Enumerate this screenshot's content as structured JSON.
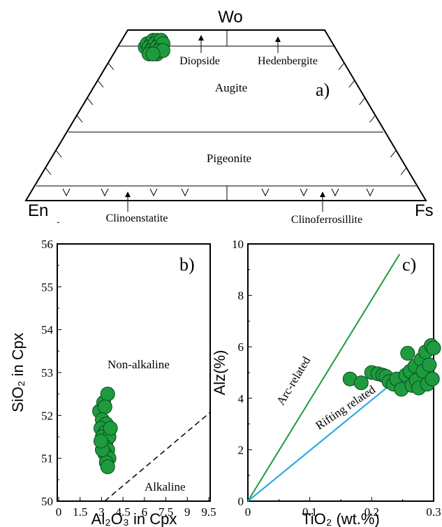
{
  "chart_data": [
    {
      "type": "scatter",
      "panel_label": "a)",
      "vertex_labels": {
        "top": "Wo",
        "left": "En",
        "right": "Fs"
      },
      "fields": {
        "diopside": "Diopside",
        "hedenbergite": "Hedenbergite",
        "augite": "Augite",
        "pigeonite": "Pigeonite",
        "clinoenstatite": "Clinoenstatite",
        "clinoferrosillite": "Clinoferrosillite"
      },
      "points": [
        {
          "en": 48,
          "fs": 7,
          "wo": 45
        },
        {
          "en": 47,
          "fs": 7,
          "wo": 46
        },
        {
          "en": 46,
          "fs": 8,
          "wo": 46
        },
        {
          "en": 45,
          "fs": 8,
          "wo": 47
        },
        {
          "en": 44,
          "fs": 9,
          "wo": 47
        },
        {
          "en": 47,
          "fs": 8,
          "wo": 45
        },
        {
          "en": 46,
          "fs": 9,
          "wo": 45
        },
        {
          "en": 45,
          "fs": 9,
          "wo": 46
        },
        {
          "en": 44,
          "fs": 10,
          "wo": 46
        },
        {
          "en": 43,
          "fs": 10,
          "wo": 47
        },
        {
          "en": 47,
          "fs": 9,
          "wo": 44
        },
        {
          "en": 46,
          "fs": 10,
          "wo": 44
        },
        {
          "en": 45,
          "fs": 10,
          "wo": 45
        },
        {
          "en": 44,
          "fs": 11,
          "wo": 45
        },
        {
          "en": 43,
          "fs": 11,
          "wo": 46
        },
        {
          "en": 48,
          "fs": 9,
          "wo": 43
        },
        {
          "en": 46,
          "fs": 11,
          "wo": 43
        },
        {
          "en": 45,
          "fs": 11,
          "wo": 44
        },
        {
          "en": 44,
          "fs": 12,
          "wo": 44
        },
        {
          "en": 47,
          "fs": 10,
          "wo": 43
        }
      ]
    },
    {
      "type": "scatter",
      "panel_label": "b)",
      "ylabel": "SiO₂ in Cpx",
      "xlabel": "Al₂O₃ in Cpx",
      "xlim": [
        0,
        10
      ],
      "ylim": [
        50,
        56
      ],
      "x_ticks": [
        "0",
        "1.5",
        "3",
        "4.5",
        "6",
        "7.5",
        "9",
        "9.5"
      ],
      "y_ticks": [
        "50",
        "51",
        "52",
        "53",
        "54",
        "55",
        "56"
      ],
      "regions": {
        "upper": "Non-alkaline",
        "lower": "Alkaline"
      },
      "points": [
        {
          "x": 2.1,
          "y": 52.1
        },
        {
          "x": 2.4,
          "y": 52.3
        },
        {
          "x": 2.7,
          "y": 52.5
        },
        {
          "x": 2.5,
          "y": 52.2
        },
        {
          "x": 2.3,
          "y": 51.9
        },
        {
          "x": 2.6,
          "y": 51.8
        },
        {
          "x": 2.2,
          "y": 51.7
        },
        {
          "x": 2.5,
          "y": 51.6
        },
        {
          "x": 2.3,
          "y": 51.5
        },
        {
          "x": 2.6,
          "y": 51.4
        },
        {
          "x": 2.8,
          "y": 51.5
        },
        {
          "x": 2.4,
          "y": 51.3
        },
        {
          "x": 2.7,
          "y": 51.2
        },
        {
          "x": 2.5,
          "y": 51.1
        },
        {
          "x": 2.8,
          "y": 51.0
        },
        {
          "x": 2.6,
          "y": 50.9
        },
        {
          "x": 2.7,
          "y": 50.8
        },
        {
          "x": 2.3,
          "y": 51.2
        },
        {
          "x": 2.9,
          "y": 51.7
        },
        {
          "x": 2.2,
          "y": 51.4
        }
      ]
    },
    {
      "type": "scatter",
      "panel_label": "c)",
      "ylabel": "Alz(%)",
      "xlabel": "TiO₂ (wt.%)",
      "xlim": [
        0,
        0.3
      ],
      "ylim": [
        0,
        10
      ],
      "x_ticks": [
        "0",
        "0.1",
        "0.2",
        "0.3"
      ],
      "y_ticks": [
        "0",
        "2",
        "4",
        "6",
        "8",
        "10"
      ],
      "lines": [
        {
          "name": "Arc-related",
          "x": [
            0,
            0.245
          ],
          "y": [
            0,
            9.6
          ],
          "color": "#1e9b3f"
        },
        {
          "name": "Rifting related",
          "x": [
            0,
            0.3
          ],
          "y": [
            0,
            5.9
          ],
          "color": "#1fa3e0"
        }
      ],
      "points": [
        {
          "x": 0.165,
          "y": 4.75
        },
        {
          "x": 0.183,
          "y": 4.6
        },
        {
          "x": 0.2,
          "y": 5.0
        },
        {
          "x": 0.21,
          "y": 4.95
        },
        {
          "x": 0.218,
          "y": 4.9
        },
        {
          "x": 0.223,
          "y": 4.85
        },
        {
          "x": 0.228,
          "y": 4.65
        },
        {
          "x": 0.235,
          "y": 4.55
        },
        {
          "x": 0.24,
          "y": 4.75
        },
        {
          "x": 0.248,
          "y": 4.35
        },
        {
          "x": 0.255,
          "y": 4.9
        },
        {
          "x": 0.258,
          "y": 5.75
        },
        {
          "x": 0.262,
          "y": 5.05
        },
        {
          "x": 0.265,
          "y": 4.5
        },
        {
          "x": 0.27,
          "y": 5.25
        },
        {
          "x": 0.272,
          "y": 4.7
        },
        {
          "x": 0.276,
          "y": 4.4
        },
        {
          "x": 0.28,
          "y": 5.5
        },
        {
          "x": 0.283,
          "y": 5.05
        },
        {
          "x": 0.287,
          "y": 5.8
        },
        {
          "x": 0.29,
          "y": 4.55
        },
        {
          "x": 0.293,
          "y": 5.3
        },
        {
          "x": 0.296,
          "y": 6.05
        },
        {
          "x": 0.3,
          "y": 5.95
        },
        {
          "x": 0.298,
          "y": 4.75
        }
      ]
    }
  ]
}
